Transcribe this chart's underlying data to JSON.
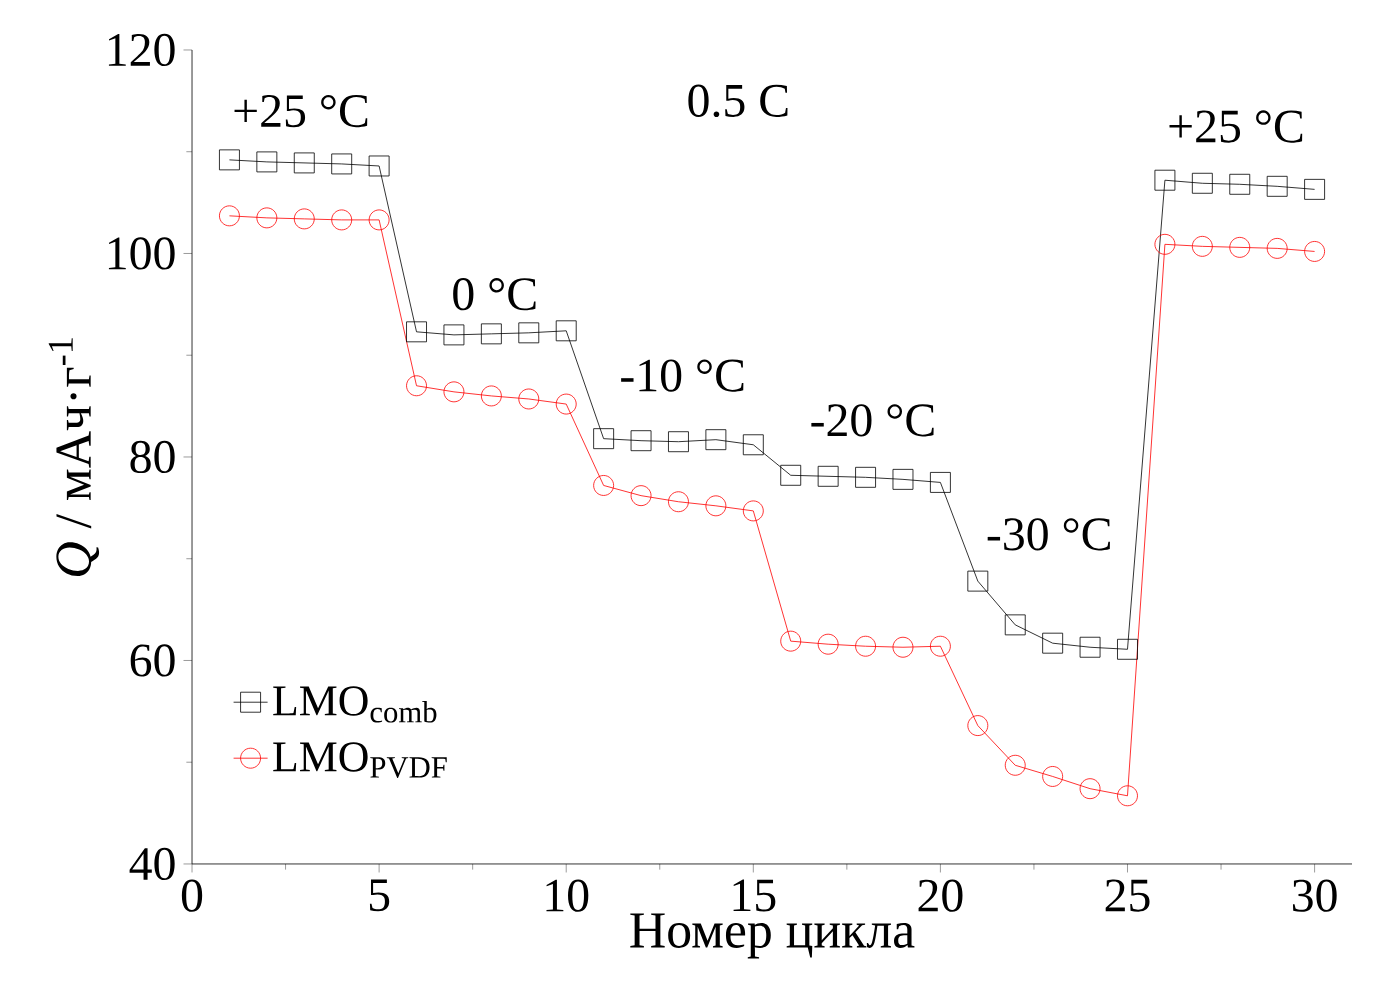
{
  "chart_data": {
    "type": "line",
    "xlabel": "Номер цикла",
    "ylabel": "*Q* / мАч·г$^{-1}$",
    "x": [
      1,
      2,
      3,
      4,
      5,
      6,
      7,
      8,
      9,
      10,
      11,
      12,
      13,
      14,
      15,
      16,
      17,
      18,
      19,
      20,
      21,
      22,
      23,
      24,
      25,
      26,
      27,
      28,
      29,
      30
    ],
    "series": [
      {
        "name": "LMO$_{comb}$",
        "color": "#000000",
        "marker": "square",
        "values": [
          109.2,
          109.0,
          108.9,
          108.8,
          108.6,
          92.3,
          92.0,
          92.1,
          92.2,
          92.4,
          81.8,
          81.6,
          81.5,
          81.7,
          81.2,
          78.2,
          78.1,
          78.0,
          77.8,
          77.5,
          67.8,
          63.5,
          61.7,
          61.3,
          61.1,
          107.2,
          106.9,
          106.8,
          106.6,
          106.3
        ]
      },
      {
        "name": "LMO$_{PVDF}$",
        "color": "#ff0000",
        "marker": "circle",
        "values": [
          103.7,
          103.5,
          103.4,
          103.3,
          103.3,
          87.0,
          86.4,
          86.0,
          85.7,
          85.2,
          77.2,
          76.2,
          75.6,
          75.2,
          74.7,
          61.9,
          61.6,
          61.4,
          61.3,
          61.4,
          53.6,
          49.7,
          48.6,
          47.4,
          46.7,
          100.9,
          100.7,
          100.6,
          100.5,
          100.2
        ]
      }
    ],
    "annotations": [
      "+25 °C",
      "0.5 C",
      "0 °C",
      "-10 °C",
      "-20 °C",
      "-30 °C",
      "+25 °C"
    ],
    "xlim": [
      0,
      31
    ],
    "ylim": [
      40,
      120
    ],
    "xticks": [
      0,
      5,
      10,
      15,
      20,
      25,
      30
    ],
    "yticks": [
      40,
      60,
      80,
      100,
      120
    ],
    "grid": false,
    "legend": "bottom left",
    "line_style": "solid"
  }
}
